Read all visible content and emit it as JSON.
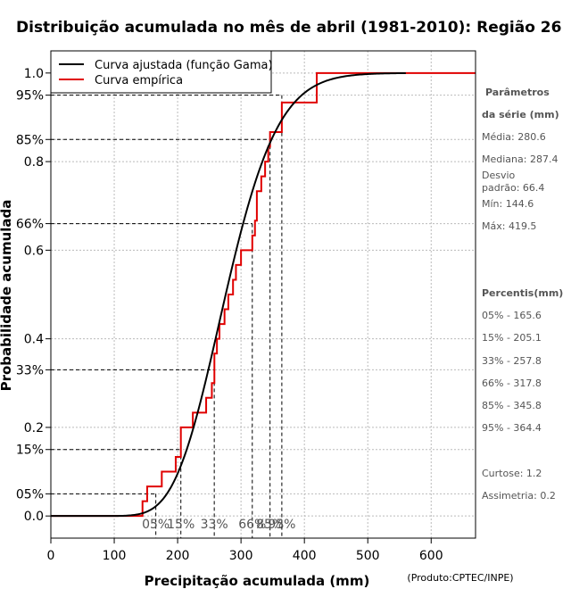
{
  "chart_data": {
    "type": "line",
    "title": "Distribuição acumulada no mês de abril (1981-2010): Região 26",
    "xlabel": "Precipitação acumulada (mm)",
    "ylabel": "Probabilidade acumulada",
    "credit": "(Produto:CPTEC/INPE)",
    "xlim": [
      0,
      670
    ],
    "ylim": [
      -0.05,
      1.05
    ],
    "x_ticks": [
      0,
      100,
      200,
      300,
      400,
      500,
      600
    ],
    "y_ticks": [
      {
        "value": 0.0,
        "label": "0.0"
      },
      {
        "value": 0.05,
        "label": "05%"
      },
      {
        "value": 0.15,
        "label": "15%"
      },
      {
        "value": 0.2,
        "label": "0.2"
      },
      {
        "value": 0.33,
        "label": "33%"
      },
      {
        "value": 0.4,
        "label": "0.4"
      },
      {
        "value": 0.6,
        "label": "0.6"
      },
      {
        "value": 0.66,
        "label": "66%"
      },
      {
        "value": 0.8,
        "label": "0.8"
      },
      {
        "value": 0.85,
        "label": "85%"
      },
      {
        "value": 0.95,
        "label": "95%"
      },
      {
        "value": 1.0,
        "label": "1.0"
      }
    ],
    "grid": true,
    "legend": {
      "position": "top-left",
      "entries": [
        {
          "label": "Curva ajustada (função Gama)",
          "color": "#000000"
        },
        {
          "label": "Curva empírica",
          "color": "#e00000"
        }
      ]
    },
    "fitted_gamma": {
      "shape": 18.6,
      "scale": 15.1,
      "x_range": [
        0,
        560
      ]
    },
    "empirical_steps": [
      {
        "x": 144.6,
        "p": 0.0333
      },
      {
        "x": 152,
        "p": 0.0667
      },
      {
        "x": 175,
        "p": 0.1
      },
      {
        "x": 197,
        "p": 0.1333
      },
      {
        "x": 205.1,
        "p": 0.2
      },
      {
        "x": 224,
        "p": 0.2333
      },
      {
        "x": 245,
        "p": 0.2667
      },
      {
        "x": 254,
        "p": 0.3
      },
      {
        "x": 258,
        "p": 0.3667
      },
      {
        "x": 262,
        "p": 0.4
      },
      {
        "x": 266,
        "p": 0.4333
      },
      {
        "x": 274,
        "p": 0.4667
      },
      {
        "x": 280,
        "p": 0.5
      },
      {
        "x": 287.4,
        "p": 0.5333
      },
      {
        "x": 292,
        "p": 0.5667
      },
      {
        "x": 300,
        "p": 0.6
      },
      {
        "x": 317.8,
        "p": 0.6333
      },
      {
        "x": 322,
        "p": 0.6667
      },
      {
        "x": 325,
        "p": 0.7333
      },
      {
        "x": 332,
        "p": 0.7667
      },
      {
        "x": 338,
        "p": 0.8
      },
      {
        "x": 343,
        "p": 0.8333
      },
      {
        "x": 345.8,
        "p": 0.8667
      },
      {
        "x": 364.4,
        "p": 0.9333
      },
      {
        "x": 419.5,
        "p": 1.0
      }
    ],
    "empirical_x_end": 670,
    "percentile_guides": [
      {
        "label": "05%",
        "p": 0.05,
        "x": 165.6
      },
      {
        "label": "15%",
        "p": 0.15,
        "x": 205.1
      },
      {
        "label": "33%",
        "p": 0.33,
        "x": 257.8
      },
      {
        "label": "66%",
        "p": 0.66,
        "x": 317.8
      },
      {
        "label": "85%",
        "p": 0.85,
        "x": 345.8
      },
      {
        "label": "95%",
        "p": 0.95,
        "x": 364.4
      }
    ]
  },
  "sidebar": {
    "params_heading_1": "Parâmetros",
    "params_heading_2": "da série (mm)",
    "media": "Média: 280.6",
    "mediana": "Mediana: 287.4",
    "desvio_1": "Desvio",
    "desvio_2": "padrão: 66.4",
    "min": "Mín: 144.6",
    "max": "Máx: 419.5",
    "percentis_heading": "Percentis(mm)",
    "p05": "05% - 165.6",
    "p15": "15% - 205.1",
    "p33": "33% - 257.8",
    "p66": "66% - 317.8",
    "p85": "85% - 345.8",
    "p95": "95% - 364.4",
    "curtose": "Curtose: 1.2",
    "assimetria": "Assimetria: 0.2"
  },
  "colors": {
    "fitted": "#000000",
    "empirical": "#e00000",
    "grid": "#bbbbbb",
    "guide": "#000000"
  }
}
